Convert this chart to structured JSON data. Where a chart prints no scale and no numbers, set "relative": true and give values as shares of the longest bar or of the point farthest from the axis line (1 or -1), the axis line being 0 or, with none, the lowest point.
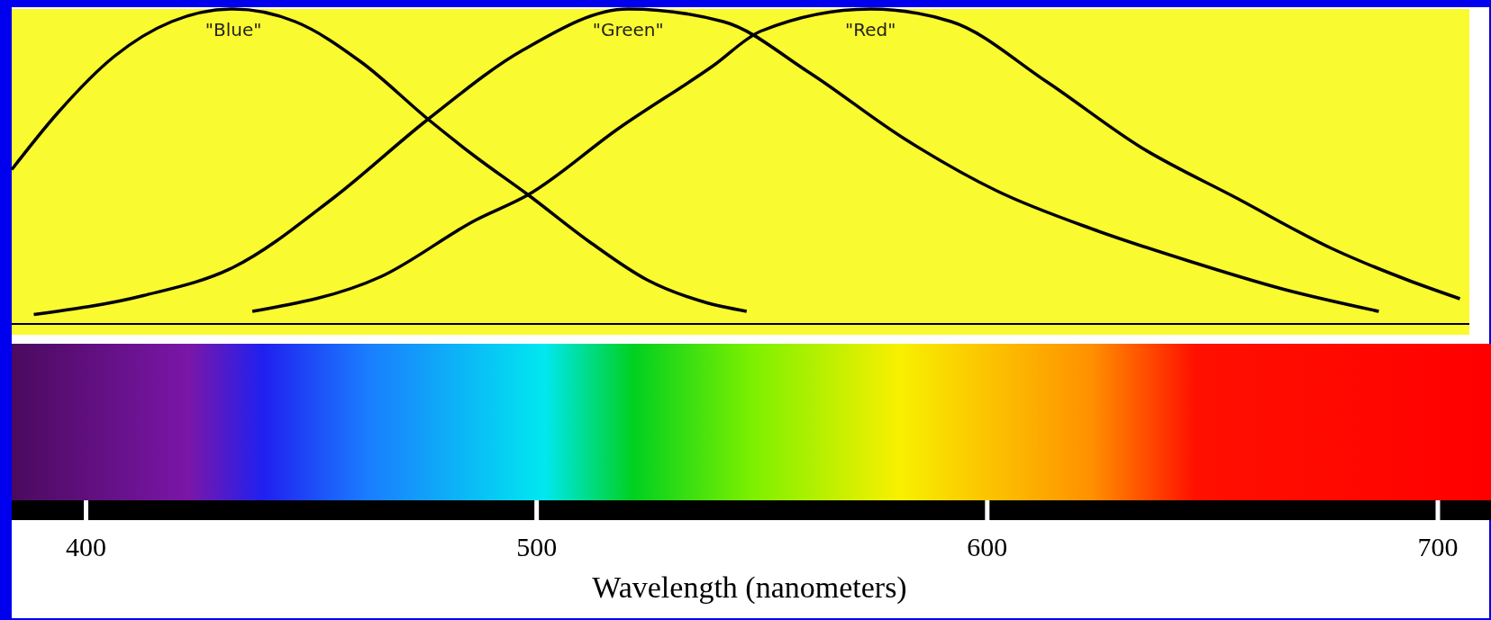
{
  "chart_data": {
    "type": "line",
    "relative": true,
    "xlabel": "Wavelength (nanometers)",
    "xlim": [
      383.5,
      707
    ],
    "xticks": [
      400,
      500,
      600,
      700
    ],
    "tick_labels": "x",
    "series": [
      {
        "name": "\"Blue\"",
        "color": "#000000",
        "x": [
          383.5,
          393.7,
          406.3,
          419,
          432.7,
          446.4,
          461.2,
          475.9,
          486.5,
          498.1,
          511.8,
          524.5,
          537.1,
          546.6
        ],
        "values": [
          0.49,
          0.67,
          0.85,
          0.96,
          1,
          0.96,
          0.83,
          0.65,
          0.53,
          0.41,
          0.26,
          0.14,
          0.07,
          0.04
        ]
      },
      {
        "name": "\"Green\"",
        "color": "#000000",
        "x": [
          388.4,
          412.7,
          432.7,
          454.9,
          475.9,
          497,
          520.3,
          541.4,
          560.3,
          581.4,
          602.5,
          623.6,
          644.7,
          665.8,
          686.9
        ],
        "values": [
          0.03,
          0.09,
          0.18,
          0.4,
          0.65,
          0.87,
          1,
          0.96,
          0.8,
          0.59,
          0.42,
          0.3,
          0.2,
          0.11,
          0.04
        ]
      },
      {
        "name": "\"Red\"",
        "color": "#000000",
        "x": [
          436.9,
          465.4,
          486.5,
          498.1,
          518.1,
          539.2,
          549.8,
          574.1,
          592,
          613.1,
          634.2,
          655.3,
          676.4,
          693.2,
          704.9
        ],
        "values": [
          0.04,
          0.15,
          0.33,
          0.41,
          0.62,
          0.82,
          0.93,
          1,
          0.96,
          0.77,
          0.56,
          0.4,
          0.24,
          0.14,
          0.08
        ]
      }
    ]
  }
}
